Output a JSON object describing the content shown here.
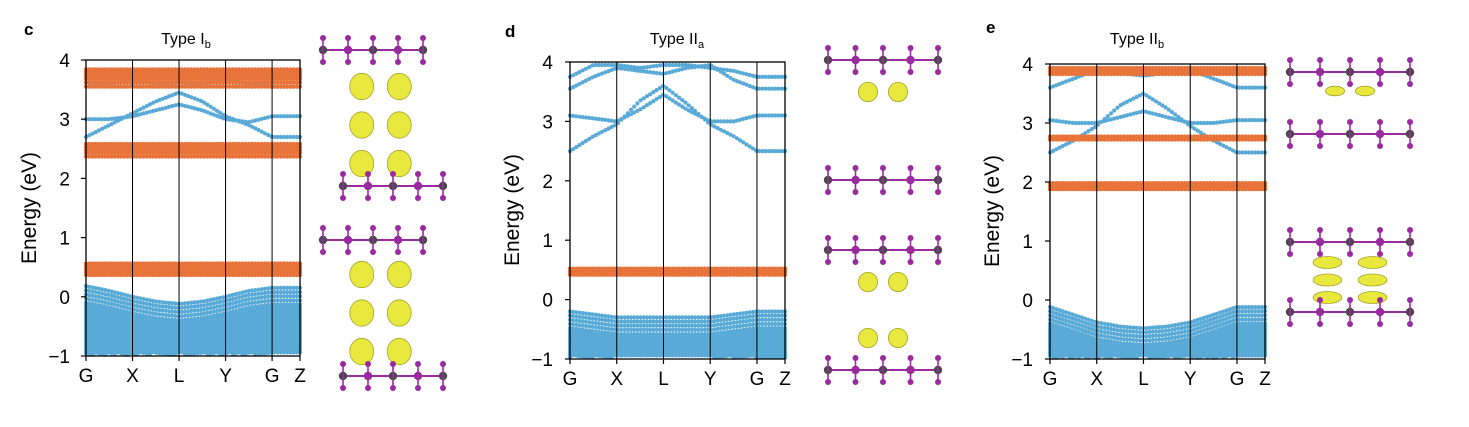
{
  "colors": {
    "valence_blue": "#5aaad8",
    "flat_orange": "#e8743b",
    "axis": "#000000",
    "iso_yellow": "#e6e62a",
    "atom_purple": "#9a2aa0",
    "atom_dark": "#4a4a4a"
  },
  "chart_data": [
    {
      "type": "scatter",
      "panel_label": "c",
      "title": "Type I",
      "title_sub": "b",
      "xlabel": "",
      "ylabel": "Energy (eV)",
      "ylim": [
        -1,
        4
      ],
      "yticks": [
        "4",
        "3",
        "2",
        "1",
        "0",
        "−1"
      ],
      "ytick_values": [
        4,
        3,
        2,
        1,
        0,
        -1
      ],
      "kpoints": [
        "G",
        "X",
        "L",
        "Y",
        "G",
        "Z"
      ],
      "kpoint_positions": [
        0,
        1,
        2,
        3,
        4,
        4.6
      ],
      "series": [
        {
          "color": "orange",
          "flat": [
            3.55,
            3.62,
            3.68,
            3.72,
            3.76,
            3.8,
            3.84,
            2.37,
            2.43,
            2.48,
            2.53,
            2.58,
            0.37,
            0.42,
            0.47,
            0.52,
            0.56
          ]
        },
        {
          "color": "blue",
          "kind": "conduction",
          "curves": [
            {
              "x": [
                0,
                0.5,
                1,
                1.5,
                2,
                2.5,
                3,
                3.5,
                4,
                4.6
              ],
              "y": [
                2.7,
                2.9,
                3.1,
                3.3,
                3.45,
                3.3,
                3.05,
                2.9,
                2.7,
                2.7
              ]
            },
            {
              "x": [
                0,
                0.5,
                1,
                1.5,
                2,
                2.5,
                3,
                3.5,
                4,
                4.6
              ],
              "y": [
                3.0,
                3.0,
                3.05,
                3.15,
                3.25,
                3.15,
                3.0,
                2.95,
                3.05,
                3.05
              ]
            },
            {
              "x": [
                0,
                0.5,
                1,
                1.5,
                2,
                2.5,
                3,
                3.5,
                4,
                4.6
              ],
              "y": [
                3.55,
                3.6,
                3.65,
                3.6,
                3.55,
                3.6,
                3.65,
                3.6,
                3.55,
                3.55
              ]
            }
          ]
        },
        {
          "color": "blue",
          "kind": "valence",
          "top": {
            "x": [
              0,
              0.5,
              1,
              1.5,
              2,
              2.5,
              3,
              3.5,
              4,
              4.6
            ],
            "y": [
              0.18,
              0.1,
              0.0,
              -0.08,
              -0.12,
              -0.08,
              0.0,
              0.1,
              0.15,
              0.15
            ]
          },
          "bottom": -1
        }
      ]
    },
    {
      "type": "scatter",
      "panel_label": "d",
      "title": "Type II",
      "title_sub": "a",
      "xlabel": "",
      "ylabel": "Energy (eV)",
      "ylim": [
        -1,
        4
      ],
      "yticks": [
        "4",
        "3",
        "2",
        "1",
        "0",
        "−1"
      ],
      "ytick_values": [
        4,
        3,
        2,
        1,
        0,
        -1
      ],
      "kpoints": [
        "G",
        "X",
        "L",
        "Y",
        "G",
        "Z"
      ],
      "kpoint_positions": [
        0,
        1,
        2,
        3,
        4,
        4.6
      ],
      "series": [
        {
          "color": "orange",
          "flat": [
            0.42,
            0.47,
            0.52
          ]
        },
        {
          "color": "blue",
          "kind": "conduction",
          "curves": [
            {
              "x": [
                0,
                0.5,
                1,
                1.5,
                2,
                2.5,
                3,
                3.5,
                4,
                4.6
              ],
              "y": [
                2.5,
                2.75,
                2.95,
                3.35,
                3.6,
                3.3,
                2.95,
                2.75,
                2.5,
                2.5
              ]
            },
            {
              "x": [
                0,
                0.5,
                1,
                1.5,
                2,
                2.5,
                3,
                3.5,
                4,
                4.6
              ],
              "y": [
                3.1,
                3.05,
                3.0,
                3.2,
                3.45,
                3.2,
                3.0,
                3.0,
                3.1,
                3.1
              ]
            },
            {
              "x": [
                0,
                0.5,
                1,
                1.5,
                2,
                2.5,
                3,
                3.5,
                4,
                4.6
              ],
              "y": [
                3.55,
                3.75,
                3.9,
                3.85,
                3.8,
                3.9,
                3.95,
                3.7,
                3.55,
                3.55
              ]
            },
            {
              "x": [
                0,
                0.5,
                1,
                1.5,
                2,
                2.5,
                3,
                3.5,
                4,
                4.6
              ],
              "y": [
                3.75,
                3.95,
                3.95,
                3.9,
                3.95,
                3.95,
                3.9,
                3.85,
                3.75,
                3.75
              ]
            }
          ]
        },
        {
          "color": "blue",
          "kind": "valence",
          "top": {
            "x": [
              0,
              0.5,
              1,
              1.5,
              2,
              2.5,
              3,
              3.5,
              4,
              4.6
            ],
            "y": [
              -0.2,
              -0.25,
              -0.3,
              -0.3,
              -0.3,
              -0.3,
              -0.3,
              -0.25,
              -0.2,
              -0.2
            ]
          },
          "bottom": -1
        }
      ]
    },
    {
      "type": "scatter",
      "panel_label": "e",
      "title": "Type II",
      "title_sub": "b",
      "xlabel": "",
      "ylabel": "Energy (eV)",
      "ylim": [
        -1,
        4
      ],
      "yticks": [
        "4",
        "3",
        "2",
        "1",
        "0",
        "−1"
      ],
      "ytick_values": [
        4,
        3,
        2,
        1,
        0,
        -1
      ],
      "kpoints": [
        "G",
        "X",
        "L",
        "Y",
        "G",
        "Z"
      ],
      "kpoint_positions": [
        0,
        1,
        2,
        3,
        4,
        4.6
      ],
      "series": [
        {
          "color": "orange",
          "flat": [
            3.83,
            3.88,
            3.93,
            2.72,
            2.77,
            1.88,
            1.93,
            1.98
          ]
        },
        {
          "color": "blue",
          "kind": "conduction",
          "curves": [
            {
              "x": [
                0,
                0.5,
                1,
                1.5,
                2,
                2.5,
                3,
                3.5,
                4,
                4.6
              ],
              "y": [
                2.5,
                2.7,
                2.95,
                3.3,
                3.5,
                3.25,
                2.95,
                2.7,
                2.5,
                2.5
              ]
            },
            {
              "x": [
                0,
                0.5,
                1,
                1.5,
                2,
                2.5,
                3,
                3.5,
                4,
                4.6
              ],
              "y": [
                3.05,
                3.0,
                3.0,
                3.1,
                3.2,
                3.1,
                3.0,
                3.0,
                3.05,
                3.05
              ]
            },
            {
              "x": [
                0,
                0.5,
                1,
                1.5,
                2,
                2.5,
                3,
                3.5,
                4,
                4.6
              ],
              "y": [
                3.6,
                3.75,
                3.9,
                3.85,
                3.8,
                3.85,
                3.9,
                3.75,
                3.6,
                3.6
              ]
            }
          ]
        },
        {
          "color": "blue",
          "kind": "valence",
          "top": {
            "x": [
              0,
              0.5,
              1,
              1.5,
              2,
              2.5,
              3,
              3.5,
              4,
              4.6
            ],
            "y": [
              -0.12,
              -0.25,
              -0.38,
              -0.45,
              -0.48,
              -0.45,
              -0.38,
              -0.25,
              -0.12,
              -0.12
            ]
          },
          "bottom": -1
        }
      ]
    }
  ]
}
